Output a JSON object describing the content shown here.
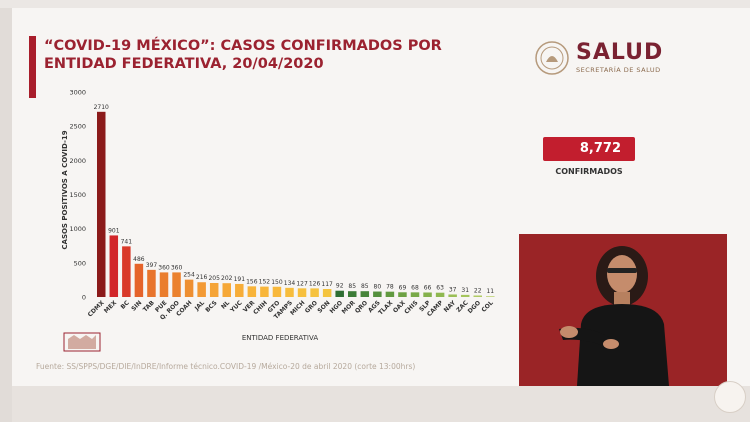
{
  "title": "“COVID-19 MÉXICO”: CASOS CONFIRMADOS POR ENTIDAD FEDERATIVA, 20/04/2020",
  "logo": {
    "name": "SALUD",
    "subtitle": "SECRETARÍA DE SALUD"
  },
  "summary": {
    "total": "8,772",
    "label": "CONFIRMADOS"
  },
  "source": "Fuente: SS/SPPS/DGE/DIE/InDRE/Informe técnico.COVID-19 /México-20 de abril 2020 (corte 13:00hrs)",
  "chart_data": {
    "type": "bar",
    "xlabel": "ENTIDAD FEDERATIVA",
    "ylabel": "CASOS POSITIVOS A COVID-19",
    "ylim": [
      0,
      3000
    ],
    "yticks": [
      0,
      500,
      1000,
      1500,
      2000,
      2500,
      3000
    ],
    "grid": false,
    "categories": [
      "CDMX",
      "MEX",
      "BC",
      "SIN",
      "TAB",
      "PUE",
      "Q. ROO",
      "COAH",
      "JAL",
      "BCS",
      "NL",
      "YUC",
      "VER",
      "CHIH",
      "GTO",
      "TAMPS",
      "MICH",
      "GRO",
      "SON",
      "HGO",
      "MOR",
      "QRO",
      "AGS",
      "TLAX",
      "OAX",
      "CHIS",
      "SLP",
      "CAMP",
      "NAY",
      "ZAC",
      "DGO",
      "COL"
    ],
    "values": [
      2710,
      901,
      741,
      486,
      397,
      360,
      360,
      254,
      216,
      205,
      202,
      191,
      156,
      152,
      150,
      134,
      127,
      126,
      117,
      92,
      85,
      85,
      80,
      78,
      69,
      68,
      66,
      63,
      37,
      31,
      22,
      11
    ],
    "colors": [
      "#8b1a1a",
      "#d2262a",
      "#d93a2a",
      "#e5632a",
      "#e8742c",
      "#ea7d2d",
      "#eb812e",
      "#ee8f31",
      "#f39a34",
      "#f5a436",
      "#f6a837",
      "#f7ad38",
      "#f8b43a",
      "#f8b63a",
      "#f8b83b",
      "#f7bd3c",
      "#f7c03d",
      "#f6c23e",
      "#f4c43f",
      "#2f6f34",
      "#3c7c37",
      "#47853a",
      "#54903d",
      "#619a40",
      "#6ea244",
      "#79aa48",
      "#85b14c",
      "#8fb850",
      "#9bbf56",
      "#a5c55c",
      "#b0cb64",
      "#bad16c"
    ]
  }
}
